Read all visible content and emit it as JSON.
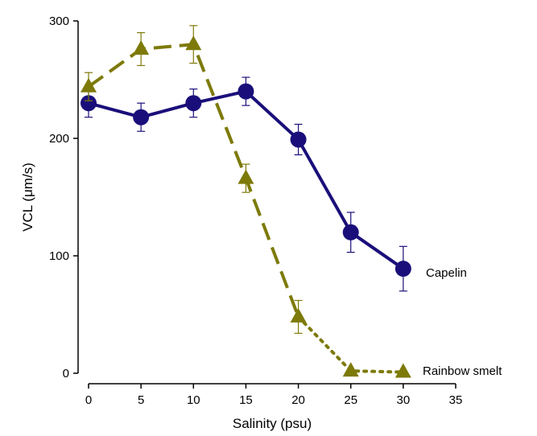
{
  "chart_data": {
    "type": "line",
    "title": "",
    "xlabel": "Salinity (psu)",
    "ylabel": "VCL (μm/s)",
    "xlim": [
      0,
      35
    ],
    "ylim": [
      0,
      300
    ],
    "xticks": [
      0,
      5,
      10,
      15,
      20,
      25,
      30,
      35
    ],
    "yticks": [
      0,
      100,
      200,
      300
    ],
    "grid": false,
    "legend": "none (series labelled at line ends)",
    "series": [
      {
        "name": "Capelin",
        "color": "#1a0f7a",
        "marker": "circle",
        "line_style": "solid",
        "x": [
          0,
          5,
          10,
          15,
          20,
          25,
          30
        ],
        "y": [
          230,
          218,
          230,
          240,
          199,
          120,
          89
        ],
        "err": [
          12,
          12,
          12,
          12,
          13,
          17,
          19
        ]
      },
      {
        "name": "Rainbow smelt",
        "color": "#7d7a0a",
        "marker": "triangle",
        "line_style": "dashed; dotted from 20 to 30 psu",
        "x": [
          0,
          5,
          10,
          15,
          20,
          25,
          30
        ],
        "y": [
          244,
          276,
          280,
          166,
          48,
          2,
          1
        ],
        "err": [
          12,
          14,
          16,
          12,
          14,
          0,
          0
        ]
      }
    ]
  }
}
